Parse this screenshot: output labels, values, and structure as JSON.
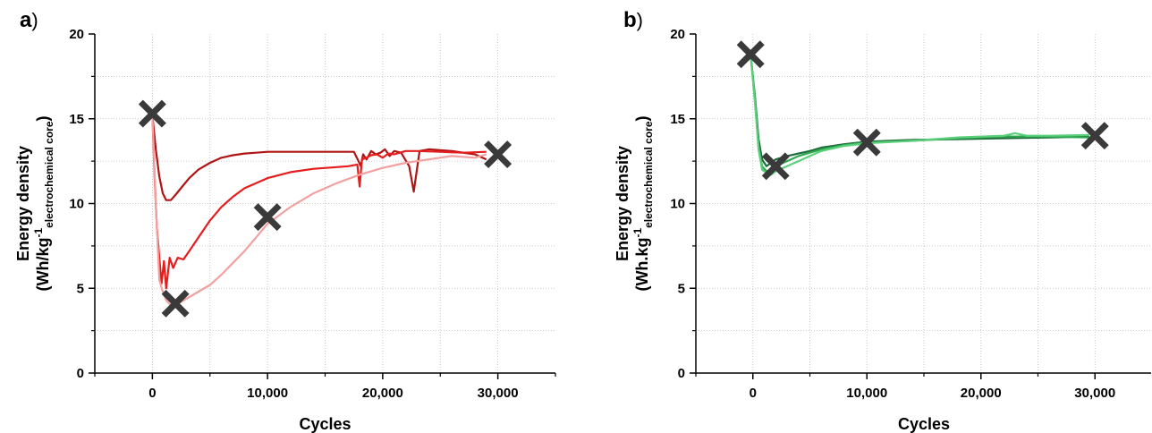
{
  "colors": {
    "a_dark": "#b01515",
    "a_mid": "#e51d1d",
    "a_light": "#f2a0a0",
    "b_dark": "#1e6b3a",
    "b_mid": "#2ea84f",
    "b_light": "#5ccf7c",
    "marker": "#3a3a3a",
    "grid": "#bdbdbd"
  },
  "chart_data": [
    {
      "type": "line",
      "panel_label": "a",
      "panel_paren": ")",
      "xlabel": "Cycles",
      "ylabel_line1": "Energy density",
      "ylabel_line2": {
        "prefix": "(Wh/kg",
        "sup": "-1",
        "sub": "electrochemical core",
        "suffix": ")"
      },
      "xlim": [
        -5000,
        35000
      ],
      "ylim": [
        0,
        20
      ],
      "xticks": [
        0,
        10000,
        20000,
        30000
      ],
      "xtick_labels": [
        "0",
        "10,000",
        "20,000",
        "30,000"
      ],
      "yticks": [
        0,
        5,
        10,
        15,
        20
      ],
      "ytick_labels": [
        "0",
        "5",
        "10",
        "15",
        "20"
      ],
      "grid": true,
      "series": [
        {
          "color_key": "a_dark",
          "x": [
            0,
            300,
            600,
            900,
            1200,
            1600,
            2000,
            2600,
            3200,
            4000,
            5000,
            6000,
            7000,
            8000,
            9000,
            10000,
            12000,
            14000,
            16000,
            17500,
            17900,
            18100,
            18300,
            18600,
            19000,
            19400,
            19800,
            20200,
            20600,
            21000,
            21600,
            22300,
            22700,
            23200,
            24000,
            26000,
            28000,
            29000
          ],
          "y": [
            15.2,
            13.2,
            11.6,
            10.6,
            10.2,
            10.2,
            10.5,
            11.0,
            11.5,
            12.0,
            12.4,
            12.7,
            12.85,
            12.95,
            13.0,
            13.05,
            13.05,
            13.05,
            13.05,
            13.05,
            12.5,
            12.2,
            12.9,
            12.6,
            13.1,
            12.9,
            13.0,
            13.2,
            12.8,
            13.1,
            13.0,
            12.2,
            10.7,
            13.1,
            13.2,
            13.1,
            12.9,
            12.6
          ]
        },
        {
          "color_key": "a_mid",
          "x": [
            0,
            200,
            400,
            600,
            800,
            1000,
            1200,
            1500,
            1800,
            2200,
            2700,
            3200,
            4000,
            5000,
            6000,
            7000,
            8000,
            9000,
            10000,
            12000,
            14000,
            16000,
            17000,
            17800,
            18000,
            18200,
            18600,
            19000,
            19500,
            20000,
            20500,
            21000,
            21500,
            22000,
            23000,
            25000,
            27000,
            29000
          ],
          "y": [
            15.2,
            11.5,
            8.5,
            6.8,
            5.3,
            6.6,
            5.0,
            6.8,
            6.2,
            6.8,
            6.7,
            7.2,
            8.0,
            9.0,
            9.8,
            10.4,
            10.9,
            11.2,
            11.5,
            11.85,
            12.05,
            12.15,
            12.2,
            12.3,
            11.0,
            12.6,
            12.7,
            12.85,
            12.9,
            12.7,
            12.95,
            12.9,
            13.0,
            13.1,
            13.1,
            13.05,
            13.0,
            13.05
          ]
        },
        {
          "color_key": "a_light",
          "x": [
            0,
            300,
            600,
            900,
            1200,
            1600,
            2000,
            3000,
            4000,
            5000,
            6000,
            7000,
            8000,
            9000,
            10000,
            12000,
            14000,
            16000,
            18000,
            20000,
            22000,
            24000,
            26000,
            28000,
            29000
          ],
          "y": [
            15.2,
            10.0,
            5.5,
            4.8,
            4.3,
            4.0,
            4.0,
            4.4,
            4.8,
            5.2,
            5.8,
            6.5,
            7.2,
            8.0,
            8.8,
            9.8,
            10.6,
            11.2,
            11.7,
            12.1,
            12.4,
            12.6,
            12.8,
            12.7,
            12.9
          ]
        }
      ],
      "markers": {
        "x": [
          0,
          2000,
          10000,
          30000
        ],
        "y": [
          15.3,
          4.1,
          9.2,
          12.9
        ]
      }
    },
    {
      "type": "line",
      "panel_label": "b",
      "panel_paren": ")",
      "xlabel": "Cycles",
      "ylabel_line1": "Energy density",
      "ylabel_line2": {
        "prefix": "(Wh.kg",
        "sup": "-1",
        "sub": "electrochemical core",
        "suffix": ")"
      },
      "xlim": [
        -5000,
        35000
      ],
      "ylim": [
        0,
        20
      ],
      "xticks": [
        0,
        10000,
        20000,
        30000
      ],
      "xtick_labels": [
        "0",
        "10,000",
        "20,000",
        "30,000"
      ],
      "yticks": [
        0,
        5,
        10,
        15,
        20
      ],
      "ytick_labels": [
        "0",
        "5",
        "10",
        "15",
        "20"
      ],
      "grid": true,
      "series": [
        {
          "color_key": "b_dark",
          "x": [
            -200,
            200,
            500,
            800,
            1200,
            1600,
            2000,
            3000,
            4000,
            5000,
            6000,
            8000,
            10000,
            14000,
            18000,
            22000,
            26000,
            29500
          ],
          "y": [
            18.8,
            16.2,
            13.8,
            12.6,
            12.2,
            12.4,
            12.6,
            12.8,
            12.95,
            13.1,
            13.3,
            13.5,
            13.65,
            13.75,
            13.8,
            13.85,
            13.9,
            13.95
          ]
        },
        {
          "color_key": "b_mid",
          "x": [
            -200,
            200,
            500,
            800,
            1200,
            1600,
            2000,
            3000,
            4000,
            5000,
            6000,
            8000,
            10000,
            14000,
            18000,
            22000,
            26000,
            29500
          ],
          "y": [
            18.8,
            16.0,
            13.4,
            12.2,
            11.9,
            12.0,
            12.2,
            12.5,
            12.8,
            13.0,
            13.2,
            13.45,
            13.6,
            13.7,
            13.85,
            13.95,
            13.95,
            13.9
          ]
        },
        {
          "color_key": "b_light",
          "x": [
            -200,
            200,
            500,
            800,
            1200,
            1600,
            2000,
            3000,
            4000,
            5000,
            6000,
            8000,
            10000,
            14000,
            18000,
            22000,
            23000,
            24000,
            26000,
            29500
          ],
          "y": [
            18.8,
            15.8,
            13.2,
            12.0,
            11.8,
            11.7,
            11.9,
            12.2,
            12.5,
            12.8,
            13.1,
            13.4,
            13.55,
            13.7,
            13.9,
            14.0,
            14.15,
            14.0,
            14.0,
            14.05
          ]
        }
      ],
      "markers": {
        "x": [
          -200,
          2000,
          10000,
          30000
        ],
        "y": [
          18.8,
          12.2,
          13.6,
          14.0
        ]
      }
    }
  ]
}
